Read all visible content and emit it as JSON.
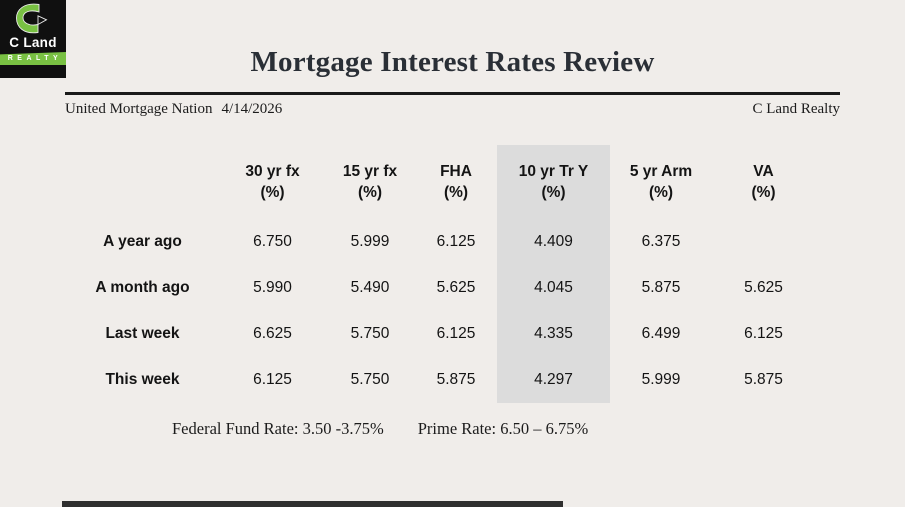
{
  "colors": {
    "background": "#f0edea",
    "green_value": "#12ab53",
    "column_highlight": "#dcdcdc",
    "logo_green": "#79c143",
    "logo_black": "#101010",
    "bottom_bar": "#2f2f2f"
  },
  "logo": {
    "name": "C Land",
    "tagline": "REALTY"
  },
  "title": "Mortgage Interest Rates Review",
  "byline": {
    "source": "United Mortgage Nation",
    "date": "4/14/2026",
    "right": "C Land Realty"
  },
  "table": {
    "columns": [
      {
        "label": "30 yr fx",
        "unit": "(%)",
        "highlight": false
      },
      {
        "label": "15 yr fx",
        "unit": "(%)",
        "highlight": false
      },
      {
        "label": "FHA",
        "unit": "(%)",
        "highlight": false
      },
      {
        "label": "10 yr Tr Y",
        "unit": "(%)",
        "highlight": true
      },
      {
        "label": "5 yr Arm",
        "unit": "(%)",
        "highlight": false
      },
      {
        "label": "VA",
        "unit": "(%)",
        "highlight": false
      }
    ],
    "rows": [
      {
        "label": "A year ago",
        "values": [
          "6.750",
          "5.999",
          "6.125",
          "4.409",
          "6.375",
          ""
        ],
        "green": [
          false,
          false,
          false,
          false,
          false,
          false
        ]
      },
      {
        "label": "A month ago",
        "values": [
          "5.990",
          "5.490",
          "5.625",
          "4.045",
          "5.875",
          "5.625"
        ],
        "green": [
          false,
          false,
          false,
          false,
          false,
          false
        ]
      },
      {
        "label": "Last week",
        "values": [
          "6.625",
          "5.750",
          "6.125",
          "4.335",
          "6.499",
          "6.125"
        ],
        "green": [
          false,
          false,
          false,
          false,
          false,
          false
        ]
      },
      {
        "label": "This week",
        "values": [
          "6.125",
          "5.750",
          "5.875",
          "4.297",
          "5.999",
          "5.875"
        ],
        "green": [
          true,
          false,
          true,
          true,
          true,
          true
        ]
      }
    ]
  },
  "footnotes": [
    {
      "label": "Federal Fund Rate:",
      "value": "3.50 -3.75%"
    },
    {
      "label": "Prime Rate:",
      "value": "6.50 – 6.75%"
    }
  ]
}
